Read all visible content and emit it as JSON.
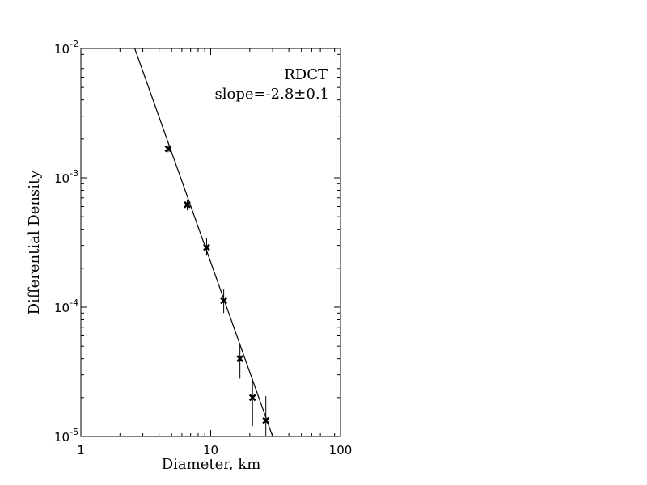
{
  "chart_data": {
    "type": "scatter",
    "xlabel": "Diameter, km",
    "ylabel": "Differential Density",
    "xscale": "log",
    "yscale": "log",
    "xlim": [
      1,
      100
    ],
    "ylim": [
      1e-05,
      0.01
    ],
    "x_ticks": [
      {
        "value": 1,
        "label": "1"
      },
      {
        "value": 10,
        "label": "10"
      },
      {
        "value": 100,
        "label": "100"
      }
    ],
    "y_ticks": [
      {
        "value": 1e-05,
        "base": "10",
        "exp": "-5"
      },
      {
        "value": 0.0001,
        "base": "10",
        "exp": "-4"
      },
      {
        "value": 0.001,
        "base": "10",
        "exp": "-3"
      },
      {
        "value": 0.01,
        "base": "10",
        "exp": "-2"
      }
    ],
    "annotations": {
      "name": "RDCT",
      "slope": "slope=-2.8±0.1"
    },
    "grid": false,
    "points": [
      {
        "x": 4.7,
        "y": 0.00168,
        "err_low": 0.00158,
        "err_high": 0.00178
      },
      {
        "x": 6.6,
        "y": 0.00062,
        "err_low": 0.00056,
        "err_high": 0.00068
      },
      {
        "x": 9.3,
        "y": 0.00029,
        "err_low": 0.00025,
        "err_high": 0.00034
      },
      {
        "x": 12.6,
        "y": 0.000112,
        "err_low": 9e-05,
        "err_high": 0.000137
      },
      {
        "x": 16.8,
        "y": 4e-05,
        "err_low": 2.8e-05,
        "err_high": 5.2e-05
      },
      {
        "x": 21.0,
        "y": 2e-05,
        "err_low": 1.2e-05,
        "err_high": 2.8e-05
      },
      {
        "x": 26.6,
        "y": 1.33e-05,
        "err_low": 6e-06,
        "err_high": 2.05e-05
      }
    ],
    "fit_line": {
      "slope": -2.8,
      "x_start": 2.6,
      "y_start": 0.01,
      "x_end": 30,
      "y_end": 1e-05
    }
  },
  "colors": {
    "axis": "#000000",
    "markers": "#000000",
    "fit": "#000000"
  }
}
